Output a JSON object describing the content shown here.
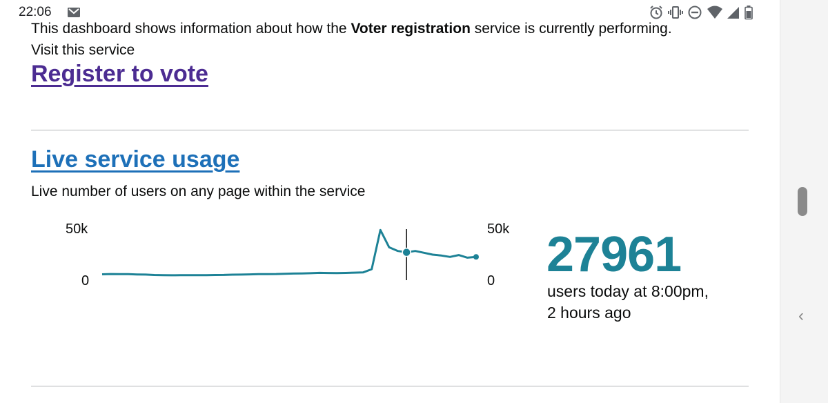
{
  "status_bar": {
    "time": "22:06",
    "icons": [
      "mail-icon",
      "alarm-icon",
      "vibrate-icon",
      "do-not-disturb-icon",
      "wifi-icon",
      "signal-icon",
      "battery-icon"
    ]
  },
  "intro": {
    "prefix": "This dashboard shows information about how the ",
    "service_name": "Voter registration",
    "suffix": " service is currently performing.",
    "visit_label": "Visit this service"
  },
  "service_link": "Register to vote",
  "live_usage": {
    "title": "Live service usage",
    "description": "Live number of users on any page within the service",
    "count": "27961",
    "caption_line1": "users today at 8:00pm,",
    "caption_line2": "2 hours ago"
  },
  "chart_data": {
    "type": "line",
    "title": "",
    "xlabel": "",
    "ylabel": "",
    "ylim": [
      0,
      50000
    ],
    "left_axis_ticks": [
      "50k",
      "0"
    ],
    "right_axis_ticks": [
      "50k",
      "0"
    ],
    "series": [
      {
        "values": [
          400,
          700,
          600,
          500,
          200,
          100,
          -400,
          -600,
          -700,
          -600,
          -500,
          -600,
          -500,
          -400,
          -300,
          0,
          100,
          300,
          500,
          600,
          700,
          1000,
          1200,
          1400,
          1600,
          2000,
          1800,
          1700,
          1900,
          2200,
          2400,
          6000,
          49000,
          30000,
          26000,
          24500,
          26000,
          24000,
          22000,
          21000,
          19500,
          21500,
          18600,
          19500
        ]
      }
    ],
    "highlight_index": 35,
    "colors": {
      "line": "#1d8296",
      "cursor": "#0b0c0c"
    }
  },
  "right_rail": {
    "icons": [
      "scroll-thumb",
      "chevron-left-icon"
    ]
  }
}
